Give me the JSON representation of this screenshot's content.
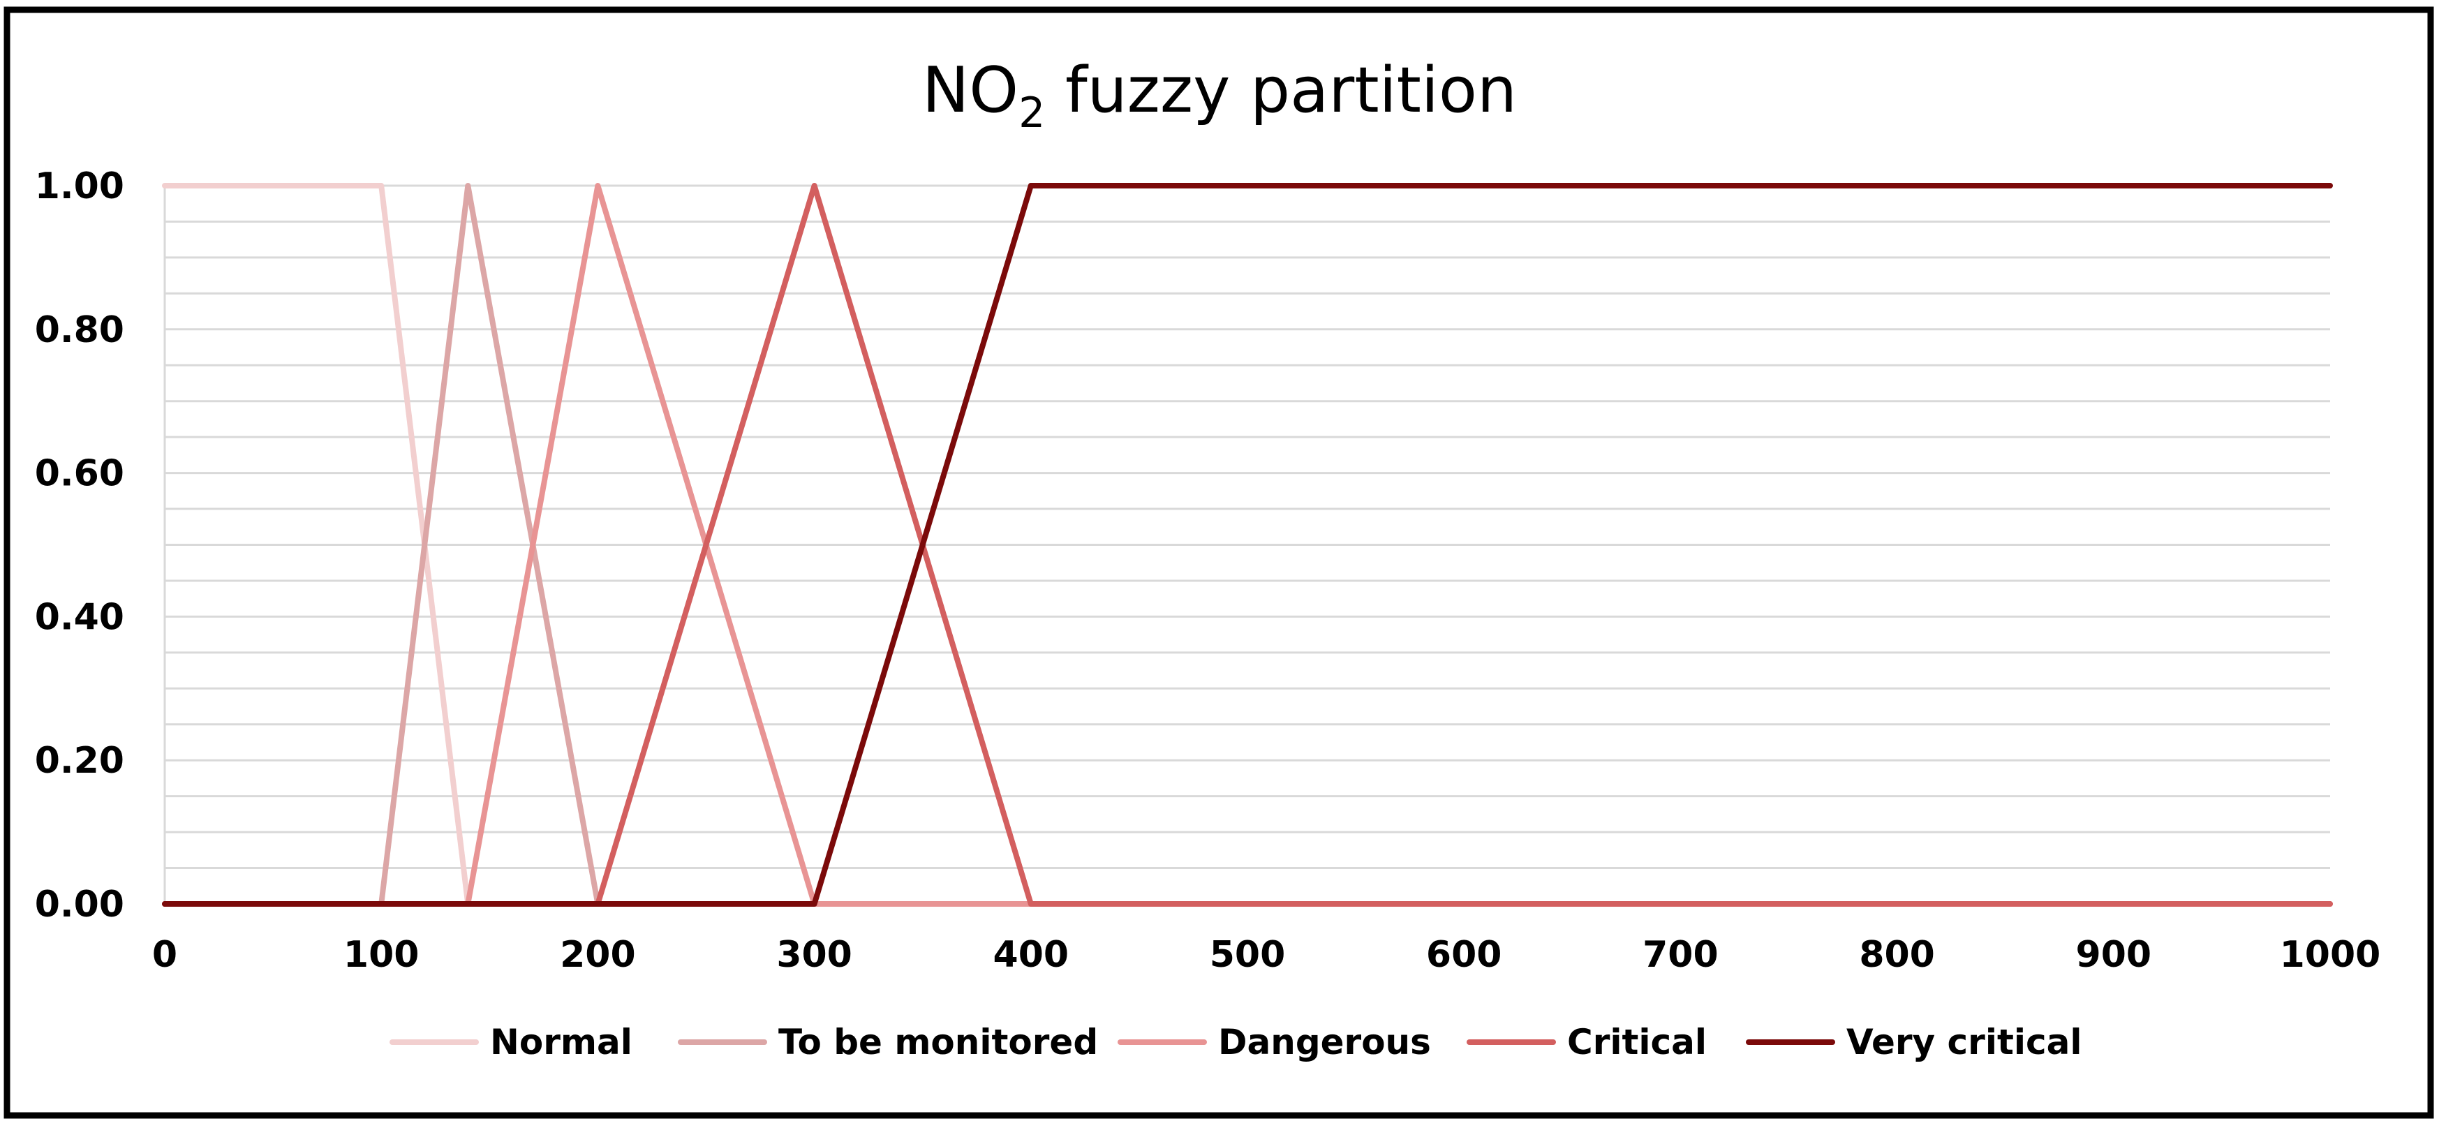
{
  "chart_data": {
    "type": "line",
    "title": {
      "prefix": "NO",
      "subscript": "2",
      "suffix": " fuzzy partition"
    },
    "xlabel": "",
    "ylabel": "",
    "xlim": [
      0,
      1000
    ],
    "ylim": [
      0,
      1
    ],
    "x_ticks": [
      "0",
      "100",
      "200",
      "300",
      "400",
      "500",
      "600",
      "700",
      "800",
      "900",
      "1000"
    ],
    "x_tick_values": [
      0,
      100,
      200,
      300,
      400,
      500,
      600,
      700,
      800,
      900,
      1000
    ],
    "y_ticks": [
      "0.00",
      "0.20",
      "0.40",
      "0.60",
      "0.80",
      "1.00"
    ],
    "y_tick_values": [
      0,
      0.2,
      0.4,
      0.6,
      0.8,
      1.0
    ],
    "minor_grid_step": 0.05,
    "grid": true,
    "legend_position": "bottom",
    "series": [
      {
        "name": "Normal",
        "color": "#f2cfcf",
        "x": [
          0,
          100,
          140,
          1000
        ],
        "y": [
          1,
          1,
          0,
          0
        ]
      },
      {
        "name": "To be monitored",
        "color": "#dca6a6",
        "x": [
          0,
          100,
          140,
          200,
          1000
        ],
        "y": [
          0,
          0,
          1,
          0,
          0
        ]
      },
      {
        "name": "Dangerous",
        "color": "#e89494",
        "x": [
          0,
          140,
          200,
          300,
          1000
        ],
        "y": [
          0,
          0,
          1,
          0,
          0
        ]
      },
      {
        "name": "Critical",
        "color": "#d35f5f",
        "x": [
          0,
          200,
          300,
          400,
          1000
        ],
        "y": [
          0,
          0,
          1,
          0,
          0
        ]
      },
      {
        "name": "Very critical",
        "color": "#7b0a0a",
        "x": [
          0,
          300,
          400,
          1000
        ],
        "y": [
          0,
          0,
          1,
          1
        ]
      }
    ]
  }
}
